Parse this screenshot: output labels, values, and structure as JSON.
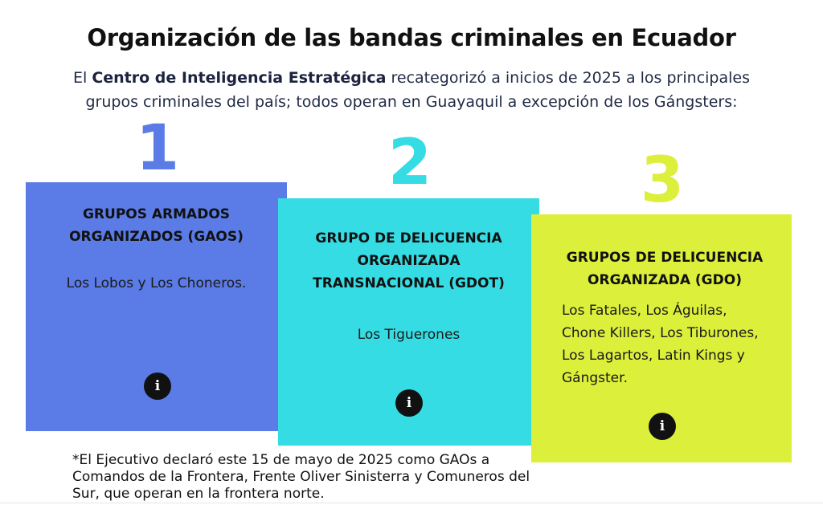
{
  "title": "Organización de las bandas criminales en Ecuador",
  "subtitle": {
    "prefix": "El ",
    "highlight": "Centro de Inteligencia Estratégica",
    "suffix": " recategorizó a inicios de 2025 a los principales grupos criminales del país; todos operan en Guayaquil a excepción de los Gángsters:"
  },
  "groups": [
    {
      "rank": "1",
      "heading": "GRUPOS ARMADOS ORGANIZADOS (GAOS)",
      "members": "Los Lobos y Los Choneros.",
      "color": "#5b7be6",
      "info_icon": "info-icon"
    },
    {
      "rank": "2",
      "heading": "GRUPO DE DELICUENCIA ORGANIZADA TRANSNACIONAL (GDOT)",
      "members": "Los Tiguerones",
      "color": "#36dce4",
      "info_icon": "info-icon"
    },
    {
      "rank": "3",
      "heading": "GRUPOS DE DELICUENCIA ORGANIZADA (GDO)",
      "members": "Los Fatales, Los Águilas, Chone Killers, Los Tiburones, Los Lagartos, Latin Kings y Gángster.",
      "color": "#dcef3b",
      "info_icon": "info-icon"
    }
  ],
  "info_symbol": "i",
  "footnote": "*El Ejecutivo declaró este 15 de mayo de 2025 como GAOs a Comandos de la Frontera, Frente Oliver Sinisterra y Comuneros del Sur, que operan en la frontera norte."
}
